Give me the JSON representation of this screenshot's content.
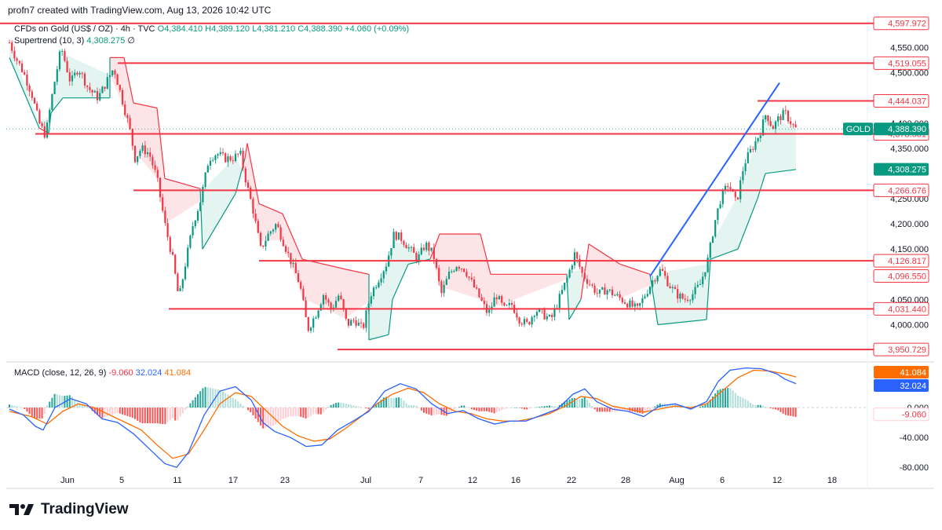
{
  "header": {
    "credit": "profn7 created with TradingView.com, Aug 13, 2026 10:42 UTC"
  },
  "legend": {
    "symbol": "CFDs on Gold (US$ / OZ) · 4h · TVC",
    "open": "O4,384.410",
    "high": "H4,389.120",
    "low": "L4,381.210",
    "close": "C4,388.390",
    "change": "+4.060 (+0.09%)",
    "supertrend_label": "Supertrend (10, 3)",
    "supertrend_value": "4,308.275",
    "supertrend_extra": "∅"
  },
  "macd_legend": {
    "label": "MACD (close, 12, 26, 9)",
    "hist": "-9.060",
    "macd": "32.024",
    "signal": "41.084"
  },
  "footer": {
    "brand": "TradingView"
  },
  "colors": {
    "up": "#089981",
    "down": "#f23645",
    "macd": "#2962ff",
    "signal": "#ff6d00",
    "level": "#f23645",
    "trendline": "#2962ff"
  },
  "chart_data": {
    "type": "candlestick",
    "symbol_badge": "GOLD",
    "last_price": 4388.39,
    "last_price_label": "4,388.390",
    "supertrend_label": "4,308.275",
    "y_ticks": [
      "4,550.000",
      "4,500.000",
      "4,400.000",
      "4,350.000",
      "4,250.000",
      "4,200.000",
      "4,150.000",
      "4,050.000",
      "4,000.000"
    ],
    "y_tick_values": [
      4550,
      4500,
      4400,
      4350,
      4250,
      4200,
      4150,
      4050,
      4000
    ],
    "ylim": [
      3940,
      4610
    ],
    "x_ticks": [
      "Jun",
      "5",
      "11",
      "17",
      "23",
      "Jul",
      "7",
      "12",
      "16",
      "22",
      "28",
      "Aug",
      "6",
      "12",
      "18"
    ],
    "levels": [
      {
        "value": 4597.972,
        "label": "4,597.972",
        "from": 0
      },
      {
        "value": 4519.055,
        "label": "4,519.055",
        "from": 150
      },
      {
        "value": 4444.037,
        "label": "4,444.037",
        "from": 965
      },
      {
        "value": 4378.581,
        "label": "4,378.581",
        "from": 45
      },
      {
        "value": 4266.676,
        "label": "4,266.676",
        "from": 170
      },
      {
        "value": 4126.817,
        "label": "4,126.817",
        "from": 330
      },
      {
        "value": 4031.44,
        "label": "4,031.440",
        "from": 215
      },
      {
        "value": 3950.729,
        "label": "3,950.729",
        "from": 430
      }
    ],
    "extra_labels": [
      {
        "value": 4096.55,
        "label": "4,096.550"
      }
    ],
    "trendline": [
      {
        "x": 828,
        "y": 4096
      },
      {
        "x": 993,
        "y": 4480
      }
    ],
    "candle_path": [
      [
        12,
        4560
      ],
      [
        20,
        4530
      ],
      [
        30,
        4500
      ],
      [
        40,
        4460
      ],
      [
        50,
        4400
      ],
      [
        58,
        4375
      ],
      [
        68,
        4470
      ],
      [
        78,
        4550
      ],
      [
        90,
        4480
      ],
      [
        100,
        4510
      ],
      [
        112,
        4470
      ],
      [
        125,
        4450
      ],
      [
        135,
        4480
      ],
      [
        145,
        4510
      ],
      [
        155,
        4450
      ],
      [
        165,
        4390
      ],
      [
        172,
        4330
      ],
      [
        180,
        4350
      ],
      [
        190,
        4340
      ],
      [
        200,
        4290
      ],
      [
        210,
        4200
      ],
      [
        220,
        4130
      ],
      [
        228,
        4050
      ],
      [
        236,
        4120
      ],
      [
        246,
        4200
      ],
      [
        256,
        4250
      ],
      [
        266,
        4330
      ],
      [
        276,
        4340
      ],
      [
        286,
        4330
      ],
      [
        296,
        4330
      ],
      [
        306,
        4340
      ],
      [
        314,
        4280
      ],
      [
        322,
        4230
      ],
      [
        332,
        4150
      ],
      [
        342,
        4180
      ],
      [
        352,
        4200
      ],
      [
        362,
        4160
      ],
      [
        372,
        4120
      ],
      [
        382,
        4080
      ],
      [
        392,
        3990
      ],
      [
        402,
        4020
      ],
      [
        412,
        4060
      ],
      [
        422,
        4030
      ],
      [
        432,
        4060
      ],
      [
        442,
        4000
      ],
      [
        452,
        4010
      ],
      [
        462,
        3990
      ],
      [
        472,
        4060
      ],
      [
        482,
        4090
      ],
      [
        492,
        4120
      ],
      [
        502,
        4180
      ],
      [
        512,
        4170
      ],
      [
        522,
        4150
      ],
      [
        532,
        4130
      ],
      [
        542,
        4160
      ],
      [
        552,
        4140
      ],
      [
        562,
        4060
      ],
      [
        572,
        4100
      ],
      [
        582,
        4120
      ],
      [
        592,
        4110
      ],
      [
        602,
        4080
      ],
      [
        612,
        4050
      ],
      [
        622,
        4020
      ],
      [
        632,
        4060
      ],
      [
        642,
        4030
      ],
      [
        652,
        4040
      ],
      [
        662,
        4010
      ],
      [
        672,
        4000
      ],
      [
        682,
        4030
      ],
      [
        692,
        4020
      ],
      [
        702,
        4010
      ],
      [
        712,
        4050
      ],
      [
        722,
        4090
      ],
      [
        732,
        4140
      ],
      [
        742,
        4100
      ],
      [
        752,
        4080
      ],
      [
        762,
        4060
      ],
      [
        772,
        4070
      ],
      [
        782,
        4060
      ],
      [
        792,
        4050
      ],
      [
        802,
        4040
      ],
      [
        812,
        4030
      ],
      [
        822,
        4060
      ],
      [
        832,
        4090
      ],
      [
        842,
        4110
      ],
      [
        852,
        4080
      ],
      [
        862,
        4060
      ],
      [
        872,
        4050
      ],
      [
        882,
        4060
      ],
      [
        892,
        4080
      ],
      [
        902,
        4130
      ],
      [
        910,
        4200
      ],
      [
        918,
        4250
      ],
      [
        928,
        4280
      ],
      [
        938,
        4240
      ],
      [
        948,
        4320
      ],
      [
        958,
        4350
      ],
      [
        968,
        4380
      ],
      [
        976,
        4420
      ],
      [
        984,
        4390
      ],
      [
        992,
        4410
      ],
      [
        1000,
        4420
      ],
      [
        1008,
        4400
      ],
      [
        1014,
        4388
      ]
    ],
    "supertrend": [
      [
        12,
        4530
      ],
      [
        50,
        4390
      ],
      [
        62,
        4380
      ],
      [
        65,
        4420
      ],
      [
        80,
        4450
      ],
      [
        140,
        4450
      ],
      [
        140,
        4530
      ],
      [
        158,
        4530
      ],
      [
        170,
        4440
      ],
      [
        200,
        4430
      ],
      [
        210,
        4290
      ],
      [
        255,
        4270
      ],
      [
        258,
        4150
      ],
      [
        300,
        4260
      ],
      [
        312,
        4330
      ],
      [
        315,
        4360
      ],
      [
        330,
        4240
      ],
      [
        360,
        4220
      ],
      [
        385,
        4130
      ],
      [
        440,
        4110
      ],
      [
        470,
        4100
      ],
      [
        470,
        3970
      ],
      [
        495,
        3980
      ],
      [
        500,
        4050
      ],
      [
        520,
        4120
      ],
      [
        548,
        4130
      ],
      [
        560,
        4180
      ],
      [
        612,
        4180
      ],
      [
        625,
        4100
      ],
      [
        722,
        4100
      ],
      [
        725,
        4010
      ],
      [
        740,
        4050
      ],
      [
        750,
        4160
      ],
      [
        790,
        4120
      ],
      [
        828,
        4100
      ],
      [
        838,
        4000
      ],
      [
        900,
        4010
      ],
      [
        905,
        4130
      ],
      [
        940,
        4150
      ],
      [
        965,
        4250
      ],
      [
        975,
        4300
      ],
      [
        1014,
        4308
      ]
    ],
    "macd": {
      "ylim": [
        -85,
        60
      ],
      "y_ticks": [
        "0.000",
        "-40.000",
        "-80.000"
      ],
      "y_tick_values": [
        0,
        -40,
        -80
      ],
      "hist_label": "-9.060",
      "macd_label": "32.024",
      "signal_label": "41.084",
      "macd_line": [
        [
          12,
          -2
        ],
        [
          30,
          -10
        ],
        [
          45,
          -25
        ],
        [
          55,
          -30
        ],
        [
          70,
          0
        ],
        [
          90,
          12
        ],
        [
          110,
          5
        ],
        [
          130,
          -15
        ],
        [
          150,
          -20
        ],
        [
          170,
          -35
        ],
        [
          190,
          -55
        ],
        [
          210,
          -75
        ],
        [
          225,
          -80
        ],
        [
          240,
          -60
        ],
        [
          260,
          -10
        ],
        [
          280,
          22
        ],
        [
          300,
          28
        ],
        [
          320,
          10
        ],
        [
          335,
          -20
        ],
        [
          350,
          -32
        ],
        [
          370,
          -40
        ],
        [
          390,
          -52
        ],
        [
          410,
          -50
        ],
        [
          430,
          -30
        ],
        [
          450,
          -18
        ],
        [
          470,
          -5
        ],
        [
          490,
          22
        ],
        [
          510,
          32
        ],
        [
          530,
          25
        ],
        [
          550,
          5
        ],
        [
          570,
          -8
        ],
        [
          590,
          -4
        ],
        [
          610,
          -15
        ],
        [
          630,
          -22
        ],
        [
          650,
          -18
        ],
        [
          670,
          -18
        ],
        [
          690,
          -10
        ],
        [
          710,
          -2
        ],
        [
          730,
          18
        ],
        [
          745,
          25
        ],
        [
          760,
          8
        ],
        [
          780,
          -2
        ],
        [
          800,
          -5
        ],
        [
          820,
          -12
        ],
        [
          840,
          2
        ],
        [
          860,
          5
        ],
        [
          880,
          -2
        ],
        [
          900,
          8
        ],
        [
          915,
          35
        ],
        [
          930,
          50
        ],
        [
          950,
          53
        ],
        [
          970,
          52
        ],
        [
          990,
          45
        ],
        [
          1000,
          38
        ],
        [
          1014,
          32
        ]
      ],
      "signal_line": [
        [
          12,
          -5
        ],
        [
          40,
          -12
        ],
        [
          60,
          -22
        ],
        [
          80,
          -5
        ],
        [
          100,
          5
        ],
        [
          120,
          0
        ],
        [
          140,
          -10
        ],
        [
          160,
          -20
        ],
        [
          180,
          -30
        ],
        [
          200,
          -50
        ],
        [
          220,
          -68
        ],
        [
          240,
          -62
        ],
        [
          260,
          -30
        ],
        [
          280,
          5
        ],
        [
          300,
          20
        ],
        [
          320,
          15
        ],
        [
          340,
          -5
        ],
        [
          360,
          -25
        ],
        [
          380,
          -38
        ],
        [
          400,
          -45
        ],
        [
          420,
          -42
        ],
        [
          440,
          -28
        ],
        [
          460,
          -12
        ],
        [
          480,
          5
        ],
        [
          500,
          18
        ],
        [
          520,
          26
        ],
        [
          540,
          20
        ],
        [
          560,
          5
        ],
        [
          580,
          -5
        ],
        [
          600,
          -8
        ],
        [
          620,
          -15
        ],
        [
          640,
          -18
        ],
        [
          660,
          -18
        ],
        [
          680,
          -14
        ],
        [
          700,
          -8
        ],
        [
          720,
          2
        ],
        [
          740,
          15
        ],
        [
          760,
          12
        ],
        [
          780,
          2
        ],
        [
          800,
          -2
        ],
        [
          820,
          -6
        ],
        [
          840,
          -2
        ],
        [
          860,
          2
        ],
        [
          880,
          0
        ],
        [
          900,
          5
        ],
        [
          920,
          22
        ],
        [
          940,
          40
        ],
        [
          960,
          50
        ],
        [
          980,
          49
        ],
        [
          1000,
          45
        ],
        [
          1014,
          41
        ]
      ]
    }
  }
}
